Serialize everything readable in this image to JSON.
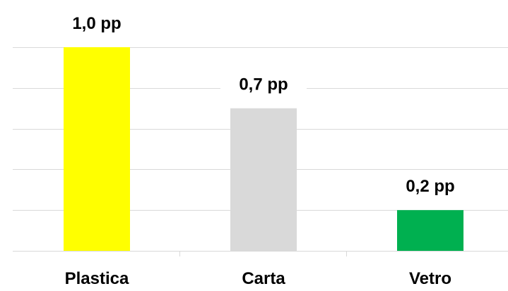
{
  "chart_data": {
    "type": "bar",
    "categories": [
      "Plastica",
      "Carta",
      "Vetro"
    ],
    "values": [
      1.0,
      0.7,
      0.2
    ],
    "data_labels": [
      "1,0 pp",
      "0,7 pp",
      "0,2 pp"
    ],
    "colors": [
      "#ffff00",
      "#d9d9d9",
      "#00b050"
    ],
    "title": "",
    "xlabel": "",
    "ylabel": "",
    "ylim": [
      0,
      1.2
    ],
    "y_gridlines": [
      0.2,
      0.4,
      0.6,
      0.8,
      1.0
    ],
    "grid": true,
    "legend": "none"
  }
}
